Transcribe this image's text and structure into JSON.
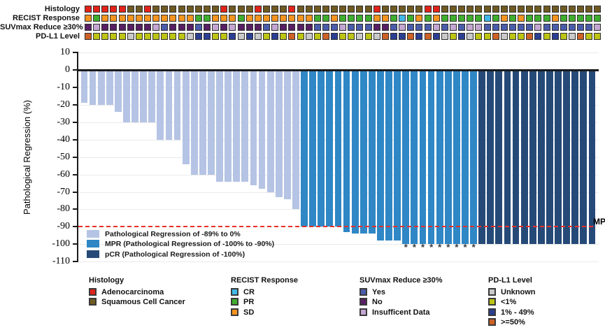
{
  "palette": {
    "adenocarcinoma": "#e2231a",
    "squamous": "#6f5a21",
    "cr": "#41b8e8",
    "pr": "#3fae2e",
    "sd": "#f5941e",
    "suv_yes": "#4a5caa",
    "suv_no": "#581f63",
    "suv_insuff": "#c4a6d3",
    "pdl1_unknown": "#c9c9c9",
    "pdl1_lt1": "#bdc414",
    "pdl1_1_49": "#2b3e92",
    "pdl1_ge50": "#cd6227",
    "bar_light": "#b5c4e4",
    "bar_mpr": "#2f87c5",
    "bar_pcr": "#264a78",
    "mpr_line": "#e8312a"
  },
  "annotation_tracks": {
    "tracks": [
      {
        "id": "histology-track",
        "label": "Histology",
        "codes": {
          "A": "adenocarcinoma",
          "S": "squamous"
        },
        "sequence": "AAAAASSASSSSSSSSASSSASSSASSSSSSSSSASSSSSAASSSSSSSSSSSSSSSSSSS"
      },
      {
        "id": "recist-track",
        "label": "RECIST Response",
        "codes": {
          "O": "sd",
          "P": "pr",
          "C": "cr"
        },
        "sequence": "OPOOOOOOOOOOOPPOOOPOOOOOOOOPPOPPPPOOPCPOPOPPPPPCPOPOPPPOPPPPP"
      },
      {
        "id": "suvmax-track",
        "label": "SUVmax Reduce ≥30%",
        "codes": {
          "Y": "suv_yes",
          "N": "suv_no",
          "I": "suv_insuff"
        },
        "sequence": "NINNNNNNIYNNNYNININNNYINNNNYYYIYYYNNYIYYYIYIYIIYYYYYYIYYYYYYI"
      },
      {
        "id": "pdl1-track",
        "label": "PD-L1 Level",
        "codes": {
          "U": "pdl1_unknown",
          "L": "pdl1_lt1",
          "M": "pdl1_1_49",
          "H": "pdl1_ge50"
        },
        "sequence": "HLLLLULLLLLLUMMLLMUMULMLHLULHMLLULUHMMHMHMULMULLHULLHMLMLUHLL"
      }
    ]
  },
  "chart_data": {
    "type": "bar",
    "title": "",
    "xlabel": "",
    "ylabel": "Pathological Regression (%)",
    "ylim": [
      -110,
      10
    ],
    "yticks": [
      10,
      0,
      -10,
      -20,
      -30,
      -40,
      -50,
      -60,
      -70,
      -80,
      -90,
      -100,
      -110
    ],
    "grid": "horizontal",
    "values": [
      -19,
      -20,
      -20,
      -20,
      -24,
      -30,
      -30,
      -30,
      -30,
      -40,
      -40,
      -40,
      -54,
      -60,
      -60,
      -60,
      -64,
      -64,
      -64,
      -64,
      -66,
      -68,
      -70,
      -73,
      -74,
      -80,
      -90,
      -90,
      -90,
      -90,
      -90,
      -93,
      -94,
      -94,
      -94,
      -98,
      -98,
      -98,
      -100,
      -100,
      -100,
      -100,
      -100,
      -100,
      -100,
      -100,
      -100,
      -100,
      -100,
      -100,
      -100,
      -100,
      -100,
      -100,
      -100,
      -100,
      -100,
      -100,
      -100,
      -100,
      -100
    ],
    "bar_classes": "LLLLLLLLLLLLLLLLLLLLLLLLLLMMMMMMMMMMMMMMMMMMMMMPPPPPPPPPPPPPP",
    "class_codes": {
      "L": "bar_light",
      "M": "bar_mpr",
      "P": "bar_pcr"
    },
    "asterisk_bars": [
      39,
      40,
      41,
      42,
      43,
      44,
      45,
      46,
      47
    ],
    "asterisk_symbol": "*",
    "threshold": {
      "value": -90,
      "label": "MPR"
    },
    "legend_position": "inside-bottom-left",
    "legend": [
      {
        "swatch": "bar_light",
        "label": "Pathological Regression of -89% to 0%"
      },
      {
        "swatch": "bar_mpr",
        "label": "MPR (Pathological Regression of -100% to -90%)"
      },
      {
        "swatch": "bar_pcr",
        "label": "pCR (Pathological Regression of -100%)"
      }
    ]
  },
  "bottom_legends": [
    {
      "title": "Histology",
      "x": 127,
      "items": [
        {
          "label": "Adenocarcinoma",
          "color": "adenocarcinoma"
        },
        {
          "label": "Squamous Cell Cancer",
          "color": "squamous"
        }
      ]
    },
    {
      "title": "RECIST Response",
      "x": 330,
      "items": [
        {
          "label": "CR",
          "color": "cr"
        },
        {
          "label": "PR",
          "color": "pr"
        },
        {
          "label": "SD",
          "color": "sd"
        }
      ]
    },
    {
      "title": "SUVmax Reduce ≥30%",
      "x": 514,
      "items": [
        {
          "label": "Yes",
          "color": "suv_yes"
        },
        {
          "label": "No",
          "color": "suv_no"
        },
        {
          "label": "Insufficent Data",
          "color": "suv_insuff"
        }
      ]
    },
    {
      "title": "PD-L1 Level",
      "x": 698,
      "items": [
        {
          "label": "Unknown",
          "color": "pdl1_unknown"
        },
        {
          "label": "<1%",
          "color": "pdl1_lt1"
        },
        {
          "label": "1% - 49%",
          "color": "pdl1_1_49"
        },
        {
          "label": ">=50%",
          "color": "pdl1_ge50"
        }
      ]
    }
  ]
}
